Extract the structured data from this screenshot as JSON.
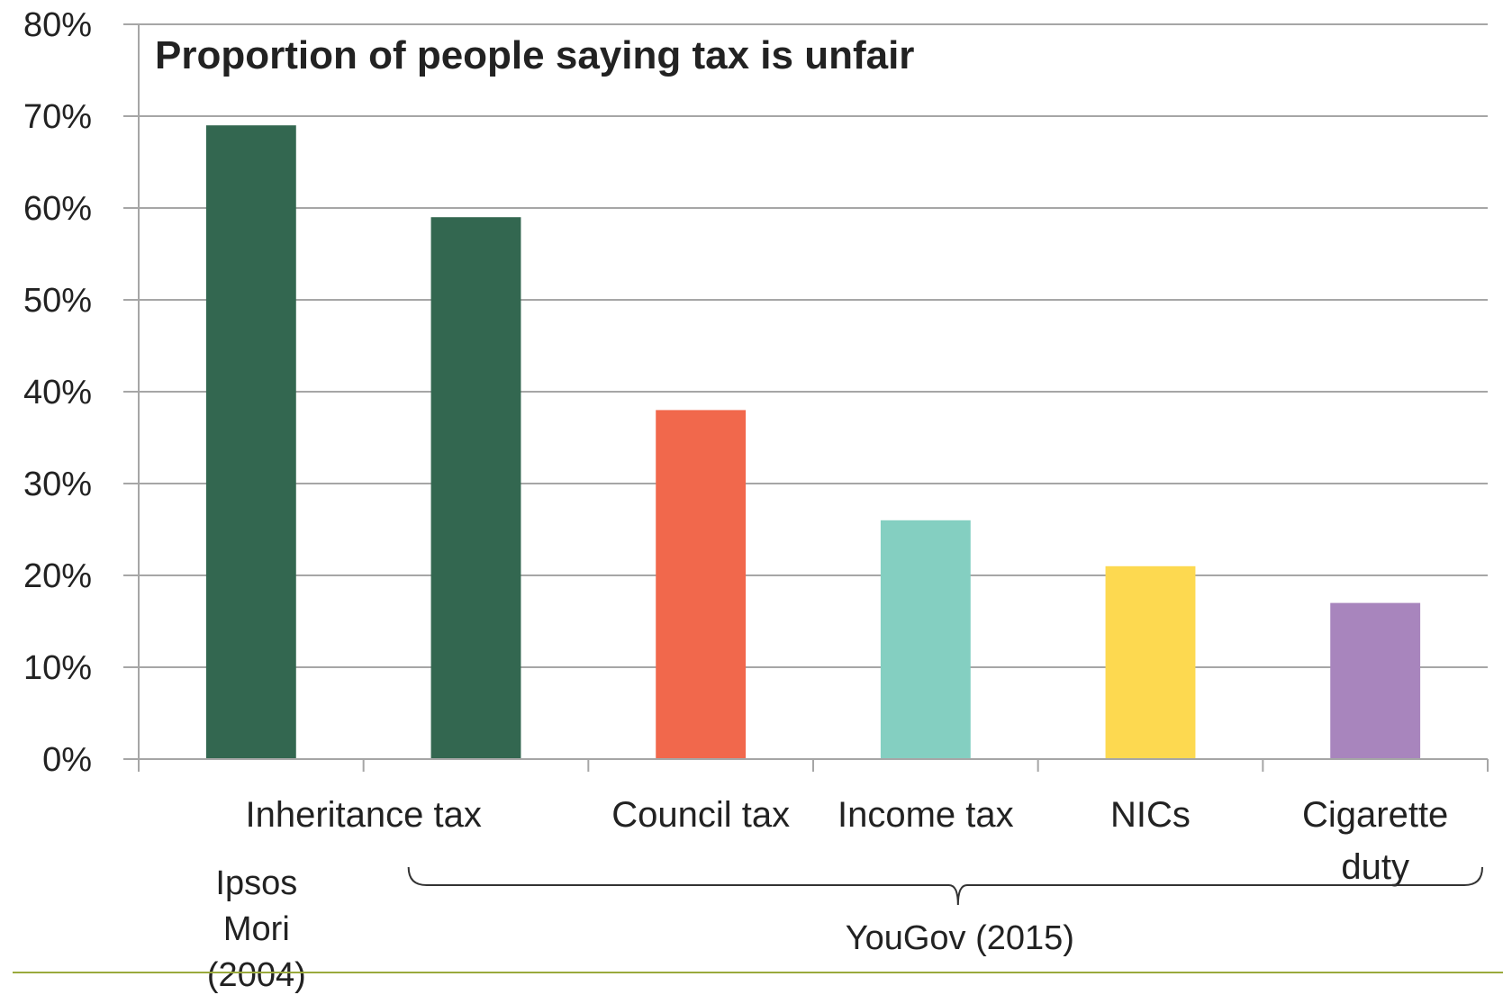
{
  "chart_data": {
    "type": "bar",
    "title": "Proportion of people saying tax is unfair",
    "xlabel": "",
    "ylabel": "",
    "ylim": [
      0,
      80
    ],
    "yticks": [
      "0%",
      "10%",
      "20%",
      "30%",
      "40%",
      "50%",
      "60%",
      "70%",
      "80%"
    ],
    "grid": true,
    "legend": "none",
    "categories": [
      [
        "Inheritance tax"
      ],
      [
        "Inheritance tax"
      ],
      [
        "Council tax"
      ],
      [
        "Income tax"
      ],
      [
        "NICs"
      ],
      [
        "Cigarette",
        "duty"
      ]
    ],
    "category_labels_shown": [
      false,
      true,
      true,
      true,
      true,
      true
    ],
    "values": [
      69,
      59,
      38,
      26,
      21,
      17
    ],
    "colors": [
      "#336750",
      "#336750",
      "#f1684c",
      "#84cfc1",
      "#fdd950",
      "#a885bd"
    ],
    "groups": [
      {
        "label": [
          "Ipsos",
          "Mori",
          "(2004)"
        ],
        "from": 0,
        "to": 0,
        "bracket": false
      },
      {
        "label": [
          "YouGov (2015)"
        ],
        "from": 1,
        "to": 5,
        "bracket": true
      }
    ]
  },
  "colors": {
    "gridline": "#a6a6a6",
    "axis": "#a6a6a6",
    "footer_rule": "#9aaa3c",
    "text": "#222222"
  }
}
